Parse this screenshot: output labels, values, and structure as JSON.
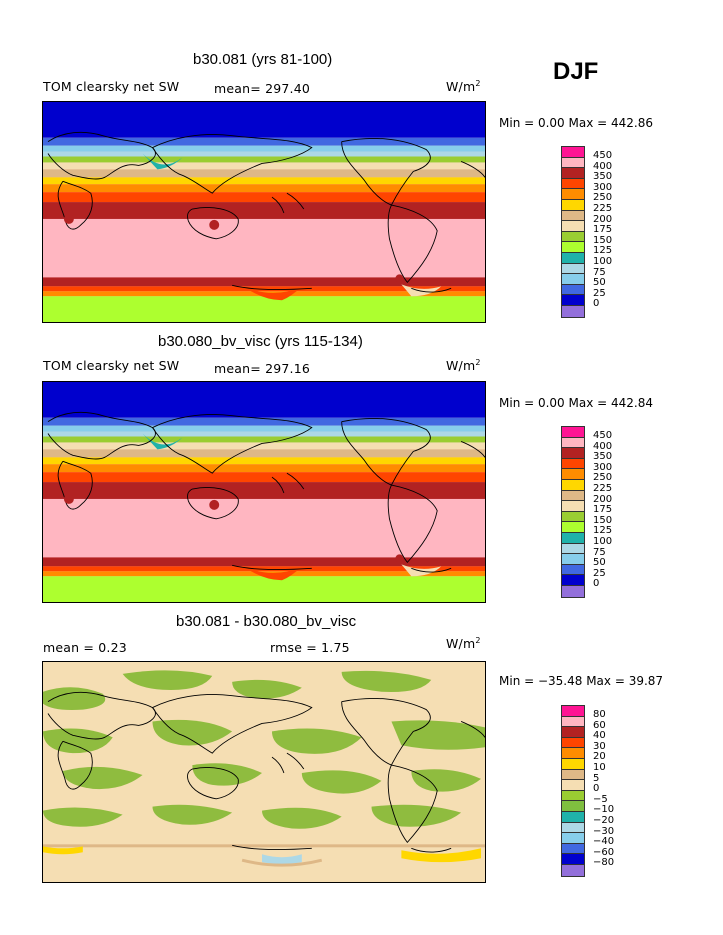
{
  "season": "DJF",
  "panels": [
    {
      "title": "b30.081 (yrs 81-100)",
      "field": "TOM clearsky net SW",
      "stat1": "mean= 297.40",
      "stat2": "",
      "unit": "W/m",
      "unit_exp": "2",
      "minmax": "Min =   0.00 Max = 442.86",
      "colorbar": {
        "labels": [
          "450",
          "400",
          "350",
          "300",
          "250",
          "225",
          "200",
          "175",
          "150",
          "125",
          "100",
          "75",
          "50",
          "25",
          "0"
        ],
        "colors": [
          "#ff1493",
          "#ffb6c1",
          "#b22222",
          "#ff4500",
          "#ff8c00",
          "#ffd700",
          "#deb887",
          "#f5deb3",
          "#9acd32",
          "#adff2f",
          "#20b2aa",
          "#add8e6",
          "#87ceeb",
          "#4169e1",
          "#0000cd",
          "#9370db"
        ]
      }
    },
    {
      "title": "b30.080_bv_visc (yrs 115-134)",
      "field": "TOM clearsky net SW",
      "stat1": "mean= 297.16",
      "stat2": "",
      "unit": "W/m",
      "unit_exp": "2",
      "minmax": "Min =   0.00 Max = 442.84",
      "colorbar": {
        "labels": [
          "450",
          "400",
          "350",
          "300",
          "250",
          "225",
          "200",
          "175",
          "150",
          "125",
          "100",
          "75",
          "50",
          "25",
          "0"
        ],
        "colors": [
          "#ff1493",
          "#ffb6c1",
          "#b22222",
          "#ff4500",
          "#ff8c00",
          "#ffd700",
          "#deb887",
          "#f5deb3",
          "#9acd32",
          "#adff2f",
          "#20b2aa",
          "#add8e6",
          "#87ceeb",
          "#4169e1",
          "#0000cd",
          "#9370db"
        ]
      }
    },
    {
      "title": "b30.081 - b30.080_bv_visc",
      "field": "mean =    0.23",
      "stat1": "",
      "stat2": "rmse =    1.75",
      "unit": "W/m",
      "unit_exp": "2",
      "minmax": "Min = −35.48 Max =  39.87",
      "colorbar": {
        "labels": [
          "80",
          "60",
          "40",
          "30",
          "20",
          "10",
          "5",
          "0",
          "−5",
          "−10",
          "−20",
          "−30",
          "−40",
          "−60",
          "−80"
        ],
        "colors": [
          "#ff1493",
          "#ffb6c1",
          "#b22222",
          "#ff4500",
          "#ff8c00",
          "#ffd700",
          "#deb887",
          "#f5deb3",
          "#9acd32",
          "#7fbf3f",
          "#20b2aa",
          "#add8e6",
          "#87ceeb",
          "#4169e1",
          "#0000cd",
          "#9370db"
        ]
      }
    }
  ],
  "palette": {
    "c0": "#0000cd",
    "c25": "#4169e1",
    "c50": "#87ceeb",
    "c75": "#add8e6",
    "c100": "#20b2aa",
    "c125": "#adff2f",
    "c150": "#9acd32",
    "c175": "#f5deb3",
    "c200": "#deb887",
    "c225": "#ffd700",
    "c250": "#ff8c00",
    "c300": "#ff4500",
    "c350": "#b22222",
    "c400": "#ffb6c1",
    "diff_bg": "#f5deb3",
    "diff_green": "#8fbc3f"
  }
}
